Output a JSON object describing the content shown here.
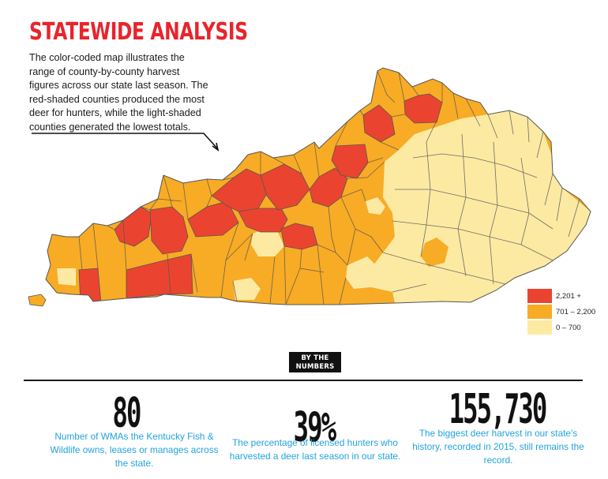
{
  "header": {
    "title": "STATEWIDE ANALYSIS",
    "intro": "The color-coded map illustrates the range of county-by-county harvest figures across our state last season. The red-shaded counties produced the most deer for hunters, while the light-shaded counties generated the lowest totals."
  },
  "map": {
    "region": "Kentucky",
    "colors": {
      "high": "#ea4430",
      "mid": "#f8ab24",
      "low": "#fceaa3",
      "border": "#555555"
    }
  },
  "legend": {
    "items": [
      {
        "label": "2,201 +",
        "color": "#ea4430"
      },
      {
        "label": "701 – 2,200",
        "color": "#f8ab24"
      },
      {
        "label": "0 – 700",
        "color": "#fceaa3"
      }
    ]
  },
  "numbers": {
    "badge_line1": "BY THE",
    "badge_line2": "NUMBERS",
    "stats": [
      {
        "value": "80",
        "description": "Number of WMAs the Kentucky Fish & Wildlife owns, leases or manages across the state."
      },
      {
        "value": "39%",
        "description": "The percentage of licensed hunters who harvested a deer last season in our state."
      },
      {
        "value": "155,730",
        "description": "The biggest deer harvest in our state's history, recorded in 2015, still remains the record."
      }
    ]
  }
}
